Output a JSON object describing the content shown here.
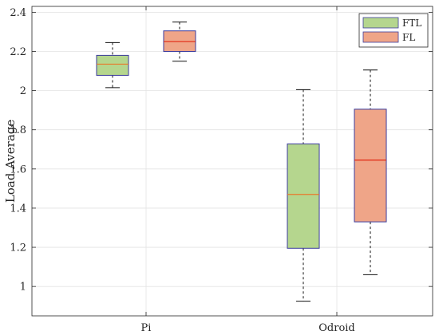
{
  "chart_data": {
    "type": "boxplot",
    "title": "",
    "xlabel": "",
    "ylabel": "Load Average",
    "ylim": [
      0.85,
      2.43
    ],
    "yticks": [
      1,
      1.2,
      1.4,
      1.6,
      1.8,
      2,
      2.2,
      2.4
    ],
    "ytick_labels": [
      "1",
      "1.2",
      "1.4",
      "1.6",
      "1.8",
      "2",
      "2.2",
      "2.4"
    ],
    "categories": [
      "Pi",
      "Odroid"
    ],
    "grid": true,
    "legend_position": "top-right",
    "series": [
      {
        "name": "FTL",
        "fill_color": "#b5d68e",
        "edge_color": "#3a3a9c",
        "median_color": "#e8792b",
        "boxes": [
          {
            "category": "Pi",
            "whisker_low": 2.015,
            "q1": 2.078,
            "median": 2.135,
            "q3": 2.18,
            "whisker_high": 2.245
          },
          {
            "category": "Odroid",
            "whisker_low": 0.925,
            "q1": 1.195,
            "median": 1.47,
            "q3": 1.728,
            "whisker_high": 2.005
          }
        ]
      },
      {
        "name": "FL",
        "fill_color": "#efa588",
        "edge_color": "#3a3a9c",
        "median_color": "#e02a14",
        "boxes": [
          {
            "category": "Pi",
            "whisker_low": 2.15,
            "q1": 2.2,
            "median": 2.25,
            "q3": 2.305,
            "whisker_high": 2.35
          },
          {
            "category": "Odroid",
            "whisker_low": 1.06,
            "q1": 1.33,
            "median": 1.645,
            "q3": 1.905,
            "whisker_high": 2.105
          }
        ]
      }
    ]
  }
}
